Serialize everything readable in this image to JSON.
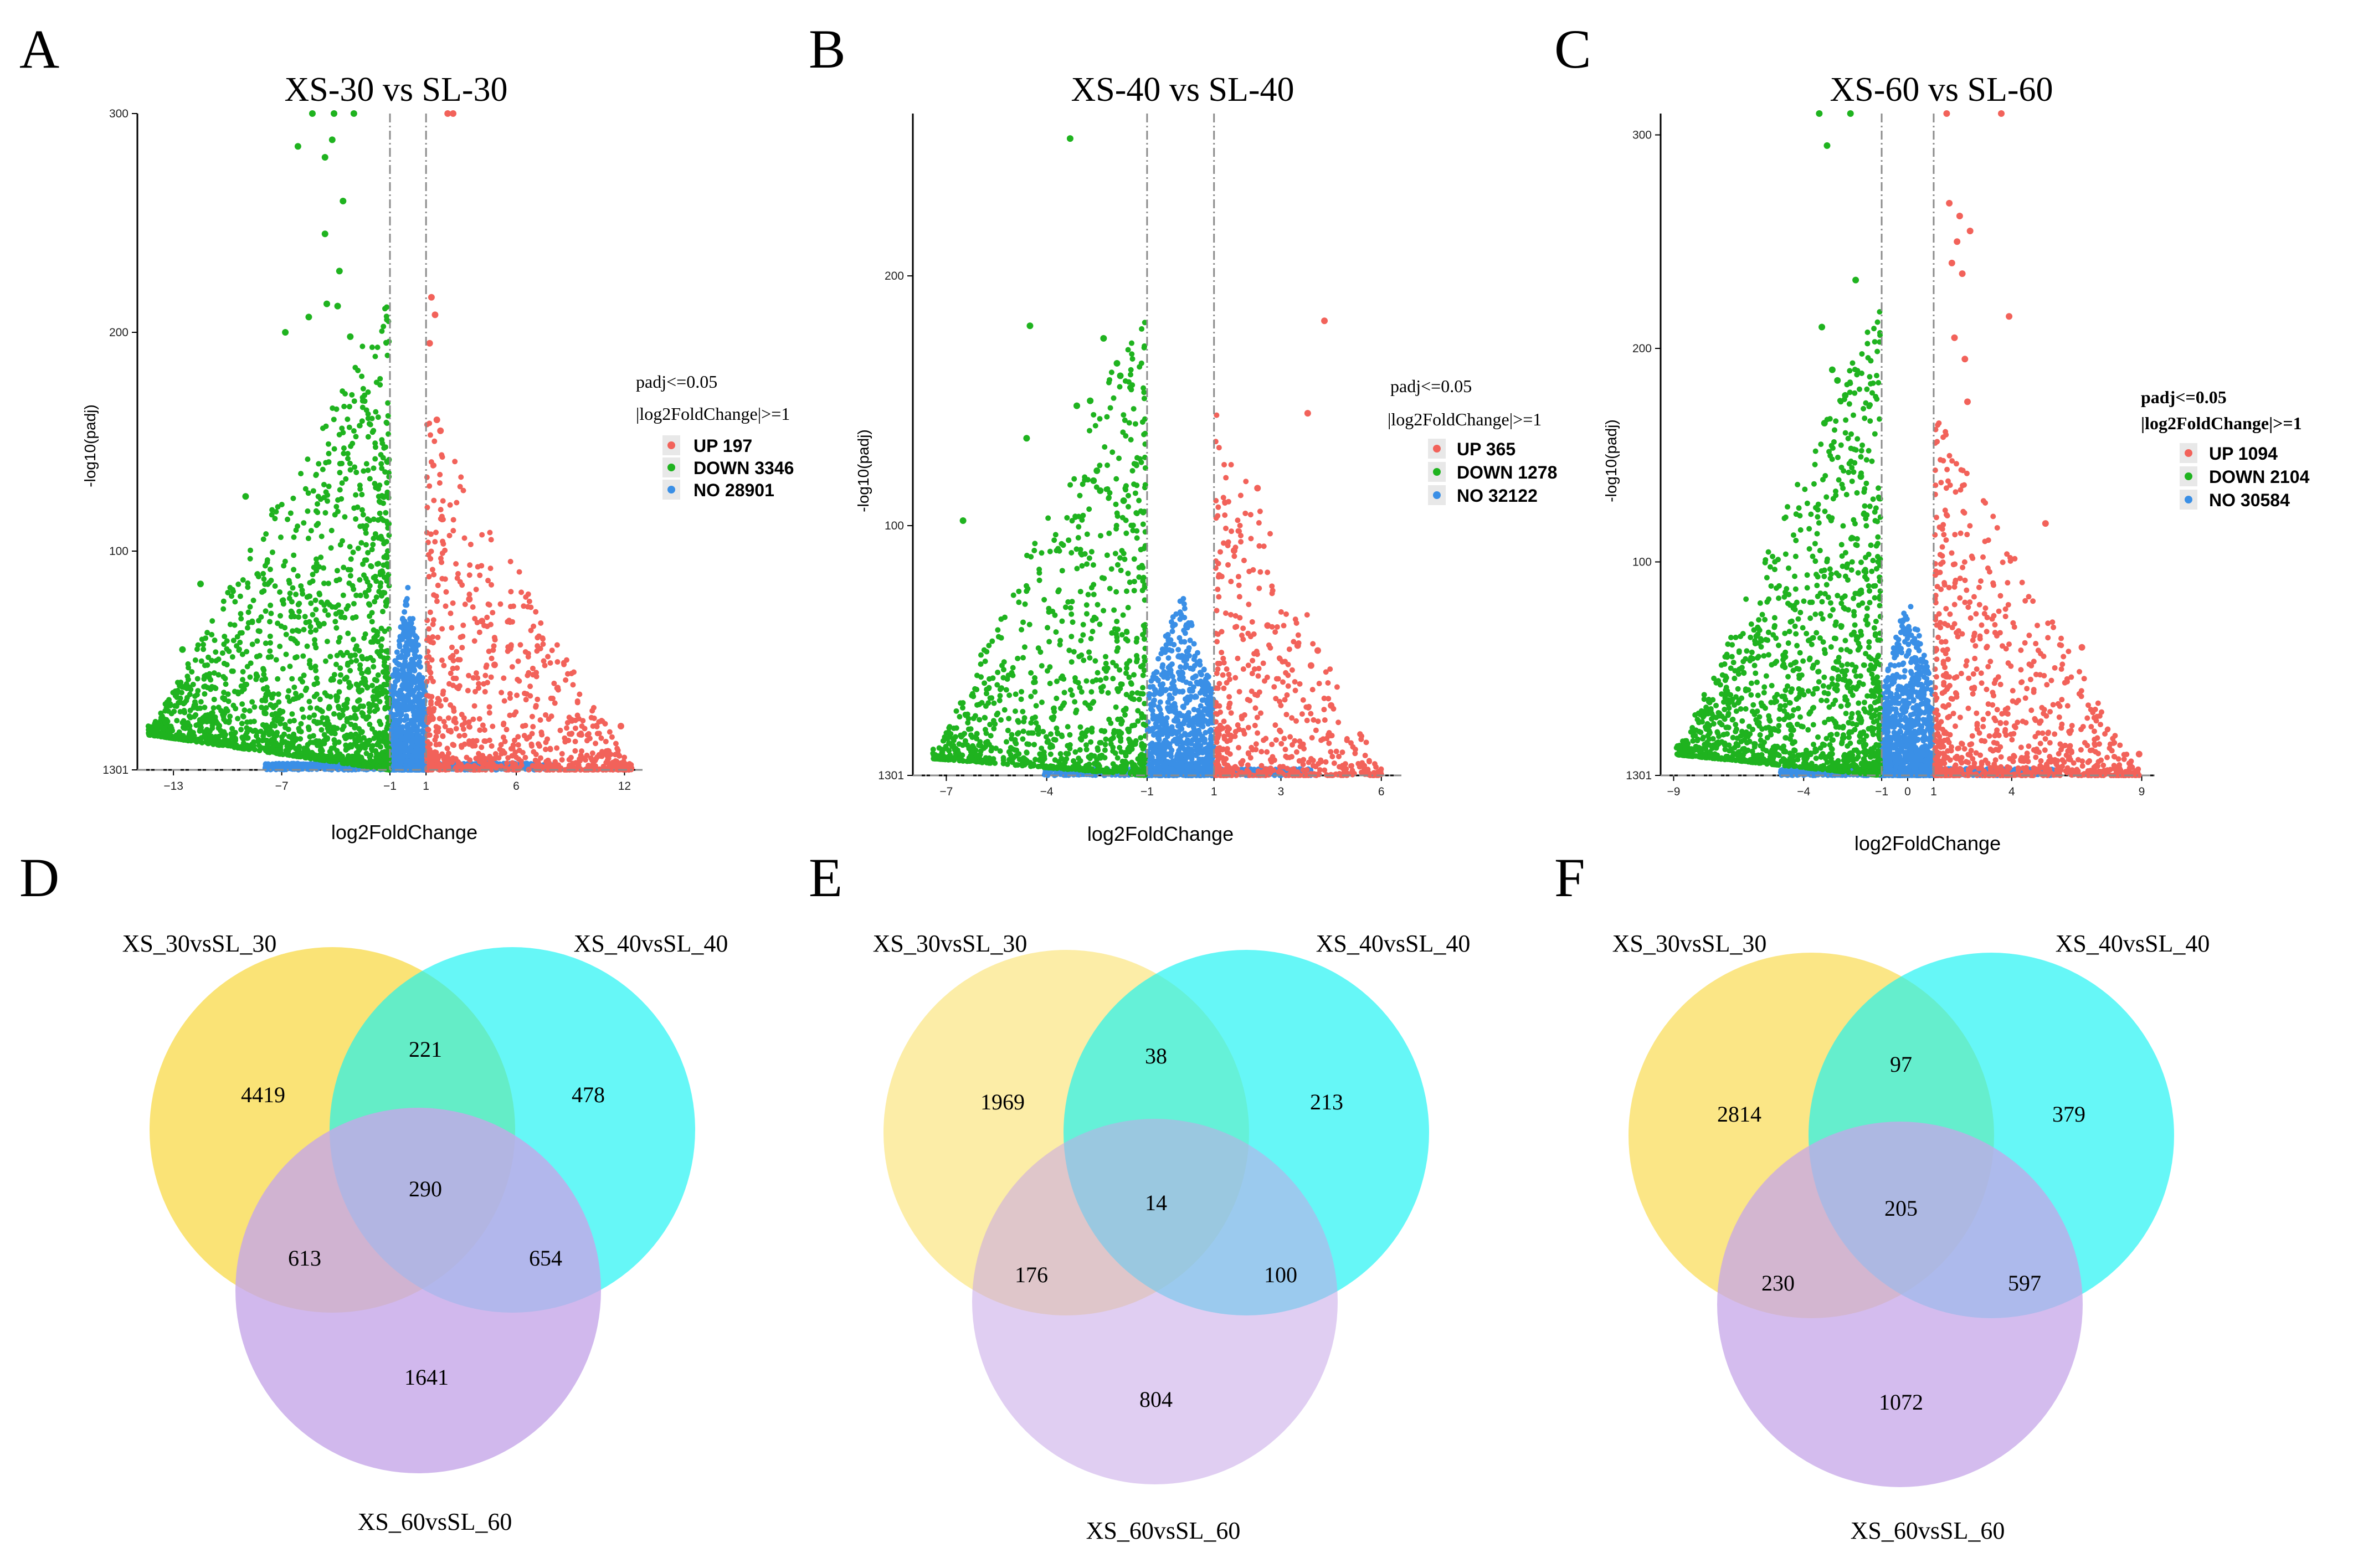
{
  "panel_letters": [
    "A",
    "B",
    "C",
    "D",
    "E",
    "F"
  ],
  "colors": {
    "up": "#f2625a",
    "down": "#1fb31f",
    "no": "#3a8fe6",
    "venn_a": "#f9de5e",
    "venn_b": "#14f2f2",
    "venn_c": "#c6a6e8",
    "threshold": "#8c8c8c",
    "legend_key_bg": "#e8e8e8"
  },
  "chart_data": [
    {
      "type": "scatter",
      "panel": "A",
      "title": "XS-30 vs SL-30",
      "xlabel": "log2FoldChange",
      "ylabel": "-log10(padj)",
      "xlim": [
        -15,
        13
      ],
      "ylim": [
        0,
        300
      ],
      "x_ticks": [
        -13,
        -7,
        -1,
        1,
        6,
        12
      ],
      "y_ticks": [
        0,
        100,
        200,
        300
      ],
      "y_tick_labels": [
        "1301",
        "100",
        "200",
        "300"
      ],
      "thresholds": {
        "x": [
          -1,
          1
        ],
        "y": 0
      },
      "legend": {
        "title_line1": "padj<=0.05",
        "title_line2": "|log2FoldChange|>=1",
        "bold_title": false,
        "entries": [
          {
            "group": "up",
            "label": "UP 197"
          },
          {
            "group": "down",
            "label": "DOWN 3346"
          },
          {
            "group": "no",
            "label": "NO 28901"
          }
        ]
      },
      "series_summary": {
        "up": 197,
        "down": 3346,
        "no": 28901
      },
      "highlight_points": {
        "down": [
          [
            -11.5,
            85
          ],
          [
            -12.5,
            55
          ],
          [
            -9,
            125
          ],
          [
            -4.6,
            280
          ],
          [
            -3.6,
            260
          ],
          [
            -4.2,
            288
          ],
          [
            -5.3,
            300
          ],
          [
            -4.1,
            300
          ],
          [
            -3,
            300
          ],
          [
            -6.1,
            285
          ],
          [
            -4.6,
            245
          ],
          [
            -3.8,
            228
          ],
          [
            -4.5,
            213
          ],
          [
            -3.9,
            212
          ],
          [
            -6.8,
            200
          ],
          [
            -5.5,
            207
          ],
          [
            -3.2,
            198
          ]
        ],
        "up": [
          [
            1.3,
            216
          ],
          [
            1.5,
            208
          ],
          [
            1.2,
            195
          ],
          [
            1.8,
            155
          ],
          [
            1.6,
            160
          ],
          [
            3.4,
            78
          ],
          [
            4.1,
            68
          ],
          [
            4.8,
            48
          ],
          [
            11.8,
            20
          ],
          [
            2.5,
            300
          ],
          [
            2.2,
            300
          ]
        ]
      }
    },
    {
      "type": "scatter",
      "panel": "B",
      "title": "XS-40 vs SL-40",
      "xlabel": "log2FoldChange",
      "ylabel": "-log10(padj)",
      "xlim": [
        -8,
        6.6
      ],
      "ylim": [
        0,
        265
      ],
      "x_ticks": [
        -7,
        -4,
        -1,
        1,
        3,
        6
      ],
      "y_ticks": [
        0,
        100,
        200
      ],
      "y_tick_labels": [
        "1301",
        "100",
        "200"
      ],
      "thresholds": {
        "x": [
          -1,
          1
        ],
        "y": 0
      },
      "legend": {
        "title_line1": "padj<=0.05",
        "title_line2": "|log2FoldChange|>=1",
        "bold_title": false,
        "entries": [
          {
            "group": "up",
            "label": "UP 365"
          },
          {
            "group": "down",
            "label": "DOWN 1278"
          },
          {
            "group": "no",
            "label": "NO 32122"
          }
        ]
      },
      "series_summary": {
        "up": 365,
        "down": 1278,
        "no": 32122
      },
      "highlight_points": {
        "down": [
          [
            -3.3,
            255
          ],
          [
            -2.3,
            175
          ],
          [
            -4.5,
            180
          ],
          [
            -1.9,
            165
          ],
          [
            -1.8,
            160
          ],
          [
            -3.1,
            148
          ],
          [
            -2.7,
            150
          ],
          [
            -2.5,
            122
          ],
          [
            -4.6,
            135
          ],
          [
            -6.5,
            102
          ],
          [
            -2.6,
            118
          ],
          [
            -2.4,
            114
          ],
          [
            -1.7,
            110
          ]
        ],
        "up": [
          [
            4.3,
            182
          ],
          [
            3.8,
            145
          ],
          [
            2.3,
            115
          ],
          [
            1.6,
            90
          ],
          [
            2.6,
            60
          ],
          [
            3.5,
            52
          ],
          [
            4.1,
            50
          ],
          [
            3.9,
            44
          ],
          [
            4.5,
            28
          ]
        ]
      }
    },
    {
      "type": "scatter",
      "panel": "C",
      "title": "XS-60 vs SL-60",
      "xlabel": "log2FoldChange",
      "ylabel": "-log10(padj)",
      "xlim": [
        -9.5,
        9.5
      ],
      "ylim": [
        0,
        310
      ],
      "x_ticks": [
        -9,
        -4,
        -1,
        0,
        1,
        4,
        9
      ],
      "y_ticks": [
        0,
        100,
        200,
        300
      ],
      "y_tick_labels": [
        "1301",
        "100",
        "200",
        "300"
      ],
      "thresholds": {
        "x": [
          -1,
          1
        ],
        "y": 0
      },
      "legend": {
        "title_line1": "padj<=0.05",
        "title_line2": "|log2FoldChange|>=1",
        "bold_title": true,
        "entries": [
          {
            "group": "up",
            "label": "UP 1094"
          },
          {
            "group": "down",
            "label": "DOWN 2104"
          },
          {
            "group": "no",
            "label": "NO 30584"
          }
        ]
      },
      "series_summary": {
        "up": 1094,
        "down": 2104,
        "no": 30584
      },
      "highlight_points": {
        "down": [
          [
            -3.1,
            295
          ],
          [
            -3.4,
            310
          ],
          [
            -2.2,
            310
          ],
          [
            -2,
            232
          ],
          [
            -3.3,
            210
          ],
          [
            -2.7,
            185
          ],
          [
            -2.9,
            190
          ],
          [
            -2.4,
            178
          ],
          [
            -3.2,
            165
          ],
          [
            -1.8,
            140
          ],
          [
            -8.6,
            10
          ]
        ],
        "up": [
          [
            1.6,
            268
          ],
          [
            2,
            262
          ],
          [
            2.4,
            255
          ],
          [
            1.9,
            250
          ],
          [
            1.7,
            240
          ],
          [
            2.1,
            235
          ],
          [
            3.9,
            215
          ],
          [
            1.8,
            205
          ],
          [
            2.2,
            195
          ],
          [
            2.3,
            175
          ],
          [
            5.3,
            118
          ],
          [
            6.7,
            60
          ],
          [
            8.9,
            10
          ],
          [
            3.6,
            310
          ],
          [
            1.5,
            310
          ]
        ]
      }
    }
  ],
  "venns": [
    {
      "panel": "D",
      "set_labels": [
        "XS_30vsSL_30",
        "XS_40vsSL_40",
        "XS_60vsSL_60"
      ],
      "counts": {
        "a": "4419",
        "ab": "221",
        "b": "478",
        "abc": "290",
        "ac": "613",
        "bc": "654",
        "c": "1641"
      }
    },
    {
      "panel": "E",
      "set_labels": [
        "XS_30vsSL_30",
        "XS_40vsSL_40",
        "XS_60vsSL_60"
      ],
      "counts": {
        "a": "1969",
        "ab": "38",
        "b": "213",
        "abc": "14",
        "ac": "176",
        "bc": "100",
        "c": "804"
      }
    },
    {
      "panel": "F",
      "set_labels": [
        "XS_30vsSL_30",
        "XS_40vsSL_40",
        "XS_60vsSL_60"
      ],
      "counts": {
        "a": "2814",
        "ab": "97",
        "b": "379",
        "abc": "205",
        "ac": "230",
        "bc": "597",
        "c": "1072"
      }
    }
  ]
}
